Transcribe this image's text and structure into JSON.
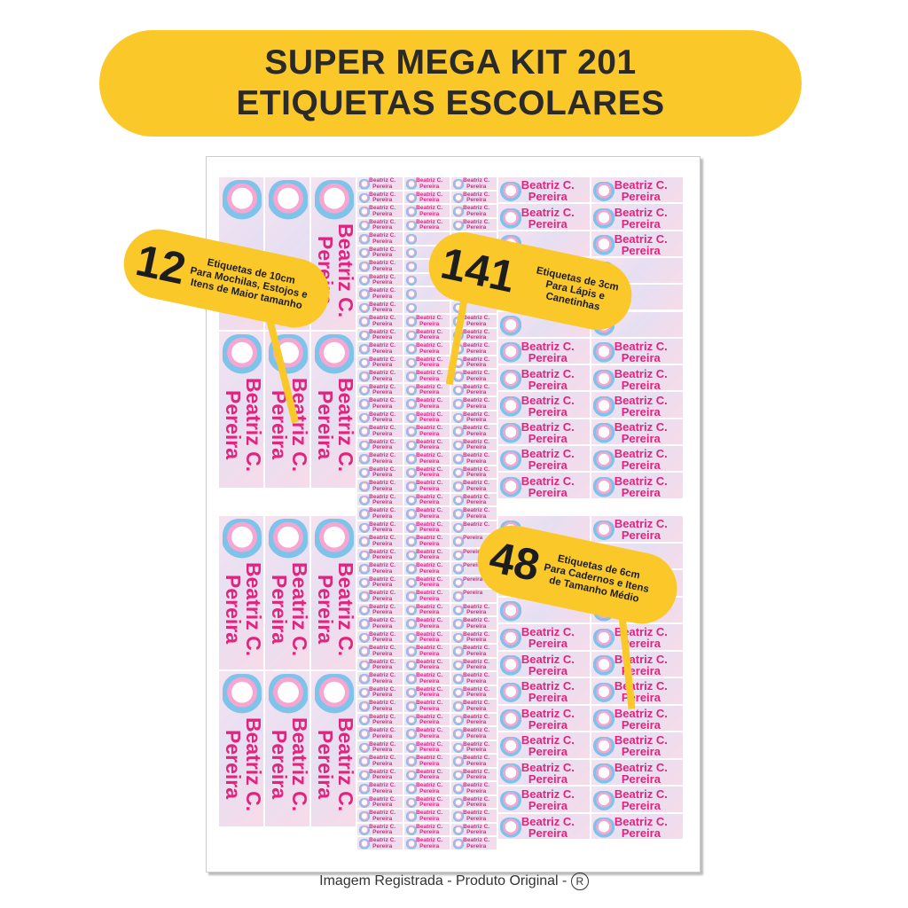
{
  "banner": {
    "line1": "SUPER MEGA KIT 201",
    "line2": "ETIQUETAS ESCOLARES"
  },
  "label_name": {
    "first": "Beatriz C.",
    "last": "Pereira"
  },
  "callouts": [
    {
      "number": "12",
      "lines": [
        "Etiquetas de 10cm",
        "Para Mochilas, Estojos e",
        "Itens de Maior tamanho"
      ]
    },
    {
      "number": "141",
      "lines": [
        "Etiquetas de 3cm",
        "Para Lápis e Canetinhas"
      ]
    },
    {
      "number": "48",
      "lines": [
        "Etiquetas de 6cm",
        "Para Cadernos e Itens",
        "de Tamanho Médio"
      ]
    }
  ],
  "footer": {
    "text": "Imagem Registrada - Produto Original -",
    "symbol": "R"
  },
  "colors": {
    "banner": "#fbc82a",
    "label_text": "#e2247e",
    "title_text": "#2a2a2a"
  }
}
